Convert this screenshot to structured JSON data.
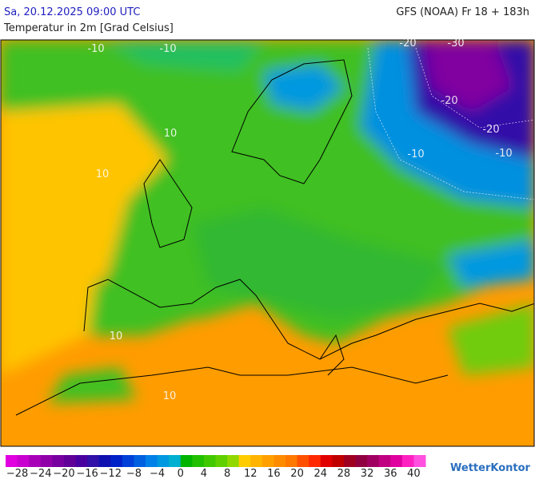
{
  "header": {
    "title": "Sa, 20.12.2025 09:00 UTC",
    "model": "GFS (NOAA) Fr 18 + 183h",
    "subtitle": "Temperatur in 2m [Grad Celsius]"
  },
  "map": {
    "contour_labels": [
      "-10",
      "-10",
      "-20",
      "-30",
      "-20",
      "-20",
      "-10",
      "-10",
      "10",
      "10",
      "10",
      "10"
    ]
  },
  "colorbar": {
    "range": [
      -30,
      42
    ],
    "colors": [
      "#e000e0",
      "#c800d0",
      "#a800b8",
      "#9000a8",
      "#7800a0",
      "#600098",
      "#4800a0",
      "#3010a8",
      "#1010b0",
      "#0020c8",
      "#0040d8",
      "#0060e0",
      "#0080e8",
      "#0098e0",
      "#00b0d0",
      "#00b400",
      "#20c000",
      "#40c800",
      "#60d000",
      "#90d800",
      "#ffcc00",
      "#ffb400",
      "#ffa000",
      "#ff8c00",
      "#ff7800",
      "#ff5000",
      "#ff2800",
      "#e00000",
      "#c00000",
      "#a00020",
      "#900040",
      "#a00060",
      "#c00080",
      "#e000a0",
      "#ff20c0",
      "#ff50e0"
    ],
    "ticks": [
      {
        "value": -28,
        "label": "−28"
      },
      {
        "value": -24,
        "label": "−24"
      },
      {
        "value": -20,
        "label": "−20"
      },
      {
        "value": -16,
        "label": "−16"
      },
      {
        "value": -12,
        "label": "−12"
      },
      {
        "value": -8,
        "label": "−8"
      },
      {
        "value": -4,
        "label": "−4"
      },
      0,
      4,
      8,
      12,
      16,
      20,
      24,
      28,
      32,
      36,
      40
    ]
  },
  "logo": "WetterKontor"
}
